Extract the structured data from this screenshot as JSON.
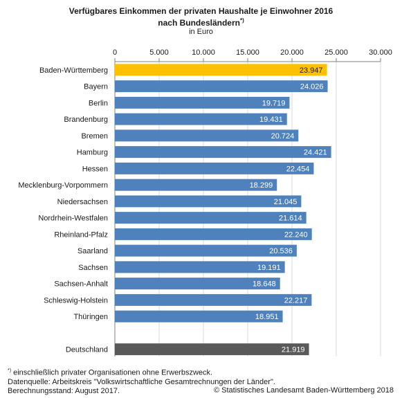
{
  "header": {
    "title_line1": "Verfügbares Einkommen der privaten Haushalte je Einwohner 2016",
    "title_line2": "nach Bundesländern",
    "title_mark": "*)",
    "subtitle": "in Euro"
  },
  "chart_data": {
    "type": "bar",
    "orientation": "horizontal",
    "title": "Verfügbares Einkommen der privaten Haushalte je Einwohner 2016 nach Bundesländern*)",
    "subtitle": "in Euro",
    "xlim": [
      0,
      30000
    ],
    "x_ticks": [
      "0",
      "5.000",
      "10.000",
      "15.000",
      "20.000",
      "25.000",
      "30.000"
    ],
    "grid": true,
    "categories": [
      "Baden-Württemberg",
      "Bayern",
      "Berlin",
      "Brandenburg",
      "Bremen",
      "Hamburg",
      "Hessen",
      "Mecklenburg-Vorpommern",
      "Niedersachsen",
      "Nordrhein-Westfalen",
      "Rheinland-Pfalz",
      "Saarland",
      "Sachsen",
      "Sachsen-Anhalt",
      "Schleswig-Holstein",
      "Thüringen",
      "Deutschland"
    ],
    "values": [
      23947,
      24026,
      19719,
      19431,
      20724,
      24421,
      22454,
      18299,
      21045,
      21614,
      22240,
      20536,
      19191,
      18648,
      22217,
      18951,
      21919
    ],
    "value_labels": [
      "23.947",
      "24.026",
      "19.719",
      "19.431",
      "20.724",
      "24.421",
      "22.454",
      "18.299",
      "21.045",
      "21.614",
      "22.240",
      "20.536",
      "19.191",
      "18.648",
      "22.217",
      "18.951",
      "21.919"
    ],
    "colors": {
      "default": "#4f81bd",
      "Baden-Württemberg": "#ffc000",
      "Deutschland": "#595959",
      "grid": "#d9d9d9",
      "label_text": "#ffffff",
      "label_text_highlight": "#1a1a1a"
    }
  },
  "footer": {
    "note_mark": "*)",
    "note": " einschließlich privater Organisationen ohne Erwerbszweck.",
    "source": "Datenquelle: Arbeitskreis \"Volkswirtschaftliche Gesamtrechnungen der Länder\".",
    "date": "Berechnungsstand: August 2017.",
    "copyright": "© Statistisches Landesamt Baden-Württemberg 2018"
  }
}
